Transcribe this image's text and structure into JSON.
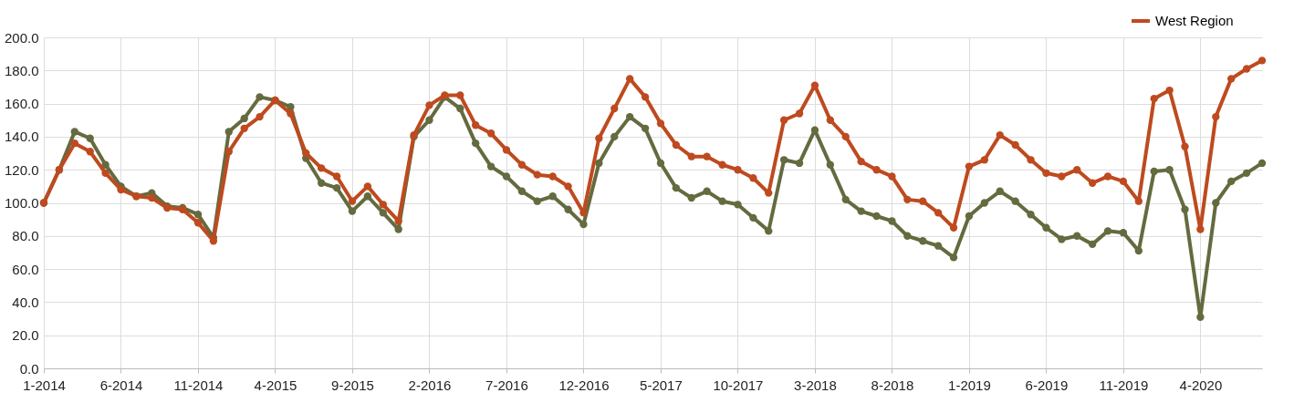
{
  "chart_data": {
    "type": "line",
    "categories": [
      "1-2014",
      null,
      null,
      null,
      null,
      "6-2014",
      null,
      null,
      null,
      null,
      "11-2014",
      null,
      null,
      null,
      null,
      "4-2015",
      null,
      null,
      null,
      null,
      "9-2015",
      null,
      null,
      null,
      null,
      "2-2016",
      null,
      null,
      null,
      null,
      "7-2016",
      null,
      null,
      null,
      null,
      "12-2016",
      null,
      null,
      null,
      null,
      "5-2017",
      null,
      null,
      null,
      null,
      "10-2017",
      null,
      null,
      null,
      null,
      "3-2018",
      null,
      null,
      null,
      null,
      "8-2018",
      null,
      null,
      null,
      null,
      "1-2019",
      null,
      null,
      null,
      null,
      "6-2019",
      null,
      null,
      null,
      null,
      "11-2019",
      null,
      null,
      null,
      null,
      "4-2020",
      null,
      null,
      null,
      null
    ],
    "series": [
      {
        "color": "#636b3f",
        "values": [
          100,
          120,
          143,
          139,
          123,
          110,
          104,
          106,
          98,
          97,
          93,
          79,
          143,
          151,
          164,
          162,
          158,
          127,
          112,
          109,
          95,
          104,
          94,
          84,
          140,
          150,
          164,
          157,
          136,
          122,
          116,
          107,
          101,
          104,
          96,
          87,
          124,
          140,
          152,
          145,
          124,
          109,
          103,
          107,
          101,
          99,
          91,
          83,
          126,
          124,
          144,
          123,
          102,
          95,
          92,
          89,
          80,
          77,
          74,
          67,
          92,
          100,
          107,
          101,
          93,
          85,
          78,
          80,
          75,
          83,
          82,
          71,
          119,
          120,
          96,
          31,
          100,
          113,
          118,
          124
        ]
      },
      {
        "name": "West Region",
        "color": "#be4a1f",
        "values": [
          100,
          120,
          136,
          131,
          118,
          108,
          104,
          103,
          97,
          96,
          88,
          77,
          131,
          145,
          152,
          162,
          154,
          130,
          121,
          116,
          101,
          110,
          99,
          89,
          141,
          159,
          165,
          165,
          147,
          142,
          132,
          123,
          117,
          116,
          110,
          94,
          139,
          157,
          175,
          164,
          148,
          135,
          128,
          128,
          123,
          120,
          115,
          106,
          150,
          154,
          171,
          150,
          140,
          125,
          120,
          116,
          102,
          101,
          94,
          85,
          122,
          126,
          141,
          135,
          126,
          118,
          116,
          120,
          112,
          116,
          113,
          101,
          163,
          168,
          134,
          84,
          152,
          175,
          181,
          186
        ]
      }
    ],
    "ylim": [
      0,
      200
    ],
    "yticks": [
      {
        "value": 0,
        "label": "0.0"
      },
      {
        "value": 20,
        "label": "20.0"
      },
      {
        "value": 40,
        "label": "40.0"
      },
      {
        "value": 60,
        "label": "60.0"
      },
      {
        "value": 80,
        "label": "80.0"
      },
      {
        "value": 100,
        "label": "100.0"
      },
      {
        "value": 120,
        "label": "120.0"
      },
      {
        "value": 140,
        "label": "140.0"
      },
      {
        "value": 160,
        "label": "160.0"
      },
      {
        "value": 180,
        "label": "180.0"
      },
      {
        "value": 200,
        "label": "200.0"
      }
    ],
    "grid": true,
    "legend": "top right",
    "marker": "circle",
    "line_style": "solid"
  }
}
